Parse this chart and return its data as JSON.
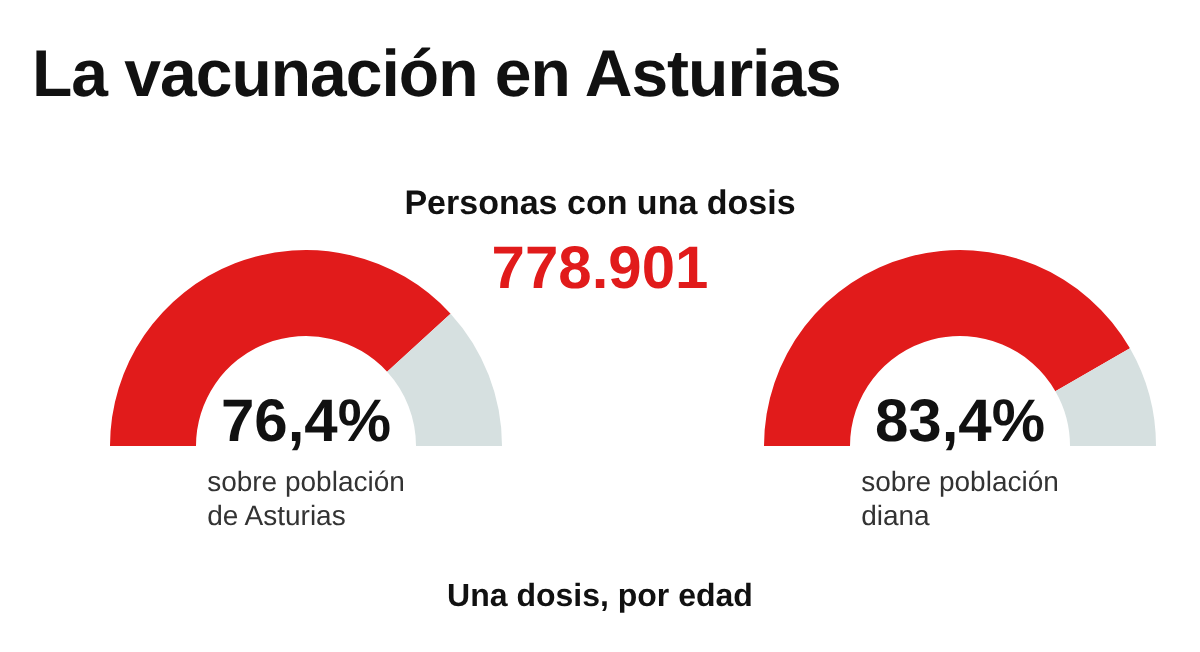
{
  "chart_data": [
    {
      "type": "other",
      "title": "La vacunación en Asturias",
      "subtitle": "Personas con una dosis",
      "annotations": [
        "778.901",
        "Una dosis, por edad"
      ]
    },
    {
      "type": "donut",
      "categories": [
        null,
        null
      ],
      "values": [
        76.4,
        23.6
      ],
      "colors": [
        "#e11b1b",
        "#d6e0e0"
      ],
      "value_labels": [
        "76,4%",
        null
      ],
      "annotations": [
        "sobre población\nde Asturias"
      ]
    },
    {
      "type": "donut",
      "categories": [
        null,
        null
      ],
      "values": [
        83.4,
        16.6
      ],
      "colors": [
        "#e11b1b",
        "#d6e0e0"
      ],
      "value_labels": [
        "83,4%",
        null
      ],
      "annotations": [
        "sobre población\ndiana"
      ]
    }
  ]
}
